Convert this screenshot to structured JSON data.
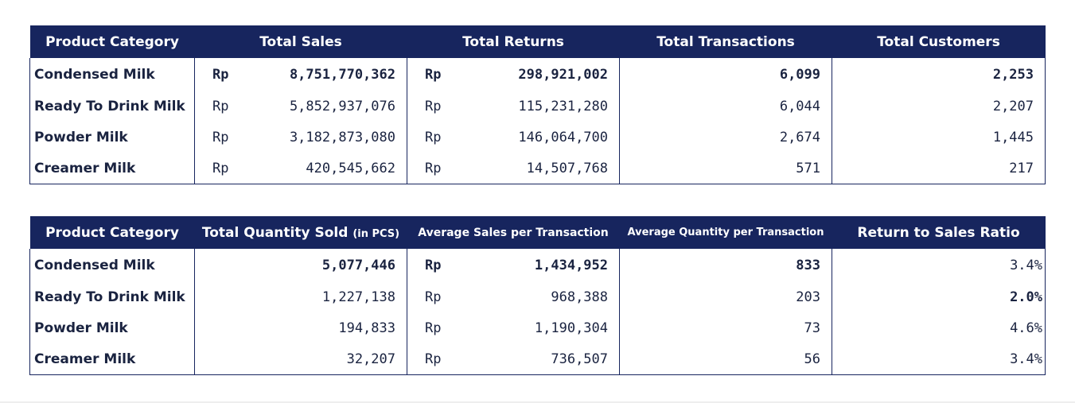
{
  "table1": {
    "headers": [
      "Product Category",
      "Total Sales",
      "Total Returns",
      "Total Transactions",
      "Total Customers"
    ],
    "currency": "Rp",
    "rows": [
      {
        "category": "Condensed Milk",
        "sales": "8,751,770,362",
        "returns": "298,921,002",
        "transactions": "6,099",
        "customers": "2,253"
      },
      {
        "category": "Ready To Drink Milk",
        "sales": "5,852,937,076",
        "returns": "115,231,280",
        "transactions": "6,044",
        "customers": "2,207"
      },
      {
        "category": "Powder Milk",
        "sales": "3,182,873,080",
        "returns": "146,064,700",
        "transactions": "2,674",
        "customers": "1,445"
      },
      {
        "category": "Creamer Milk",
        "sales": "420,545,662",
        "returns": "14,507,768",
        "transactions": "571",
        "customers": "217"
      }
    ]
  },
  "table2": {
    "headers": {
      "category": "Product Category",
      "quantity": "Total Quantity Sold",
      "quantity_unit": "(in PCS)",
      "avg_sales": "Average Sales per Transaction",
      "avg_qty": "Average Quantity per Transaction",
      "ratio": "Return to Sales Ratio"
    },
    "currency": "Rp",
    "rows": [
      {
        "category": "Condensed Milk",
        "quantity": "5,077,446",
        "avg_sales": "1,434,952",
        "avg_qty": "833",
        "ratio": "3.4%"
      },
      {
        "category": "Ready To Drink Milk",
        "quantity": "1,227,138",
        "avg_sales": "968,388",
        "avg_qty": "203",
        "ratio": "2.0%"
      },
      {
        "category": "Powder Milk",
        "quantity": "194,833",
        "avg_sales": "1,190,304",
        "avg_qty": "73",
        "ratio": "4.6%"
      },
      {
        "category": "Creamer Milk",
        "quantity": "32,207",
        "avg_sales": "736,507",
        "avg_qty": "56",
        "ratio": "3.4%"
      }
    ]
  },
  "colors": {
    "header_bg": "#17255e",
    "header_text": "#ffffff",
    "category_text": "#17255e"
  }
}
